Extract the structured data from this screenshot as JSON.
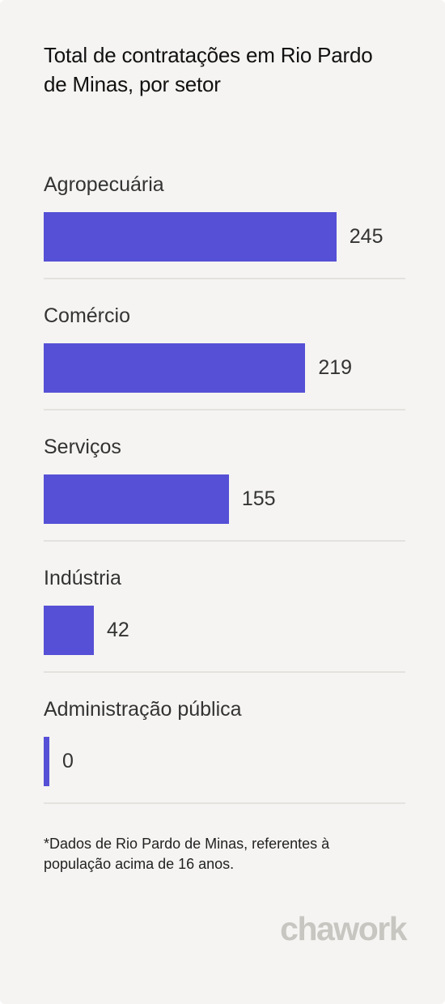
{
  "title": "Total de contratações em Rio Pardo de Minas, por setor",
  "footnote": "*Dados de Rio Pardo de Minas, referentes à população acima de 16 anos.",
  "brand": "chawork",
  "colors": {
    "bar": "#5650d6",
    "background": "#f5f4f2",
    "separator": "#e3e2df",
    "logo": "#c8c6c1"
  },
  "chart_data": {
    "type": "bar",
    "orientation": "horizontal",
    "title": "Total de contratações em Rio Pardo de Minas, por setor",
    "categories": [
      "Agropecuária",
      "Comércio",
      "Serviços",
      "Indústria",
      "Administração pública"
    ],
    "values": [
      245,
      219,
      155,
      42,
      0
    ],
    "xlabel": "",
    "ylabel": "",
    "xlim": [
      0,
      300
    ],
    "grid": false,
    "legend": "none"
  }
}
